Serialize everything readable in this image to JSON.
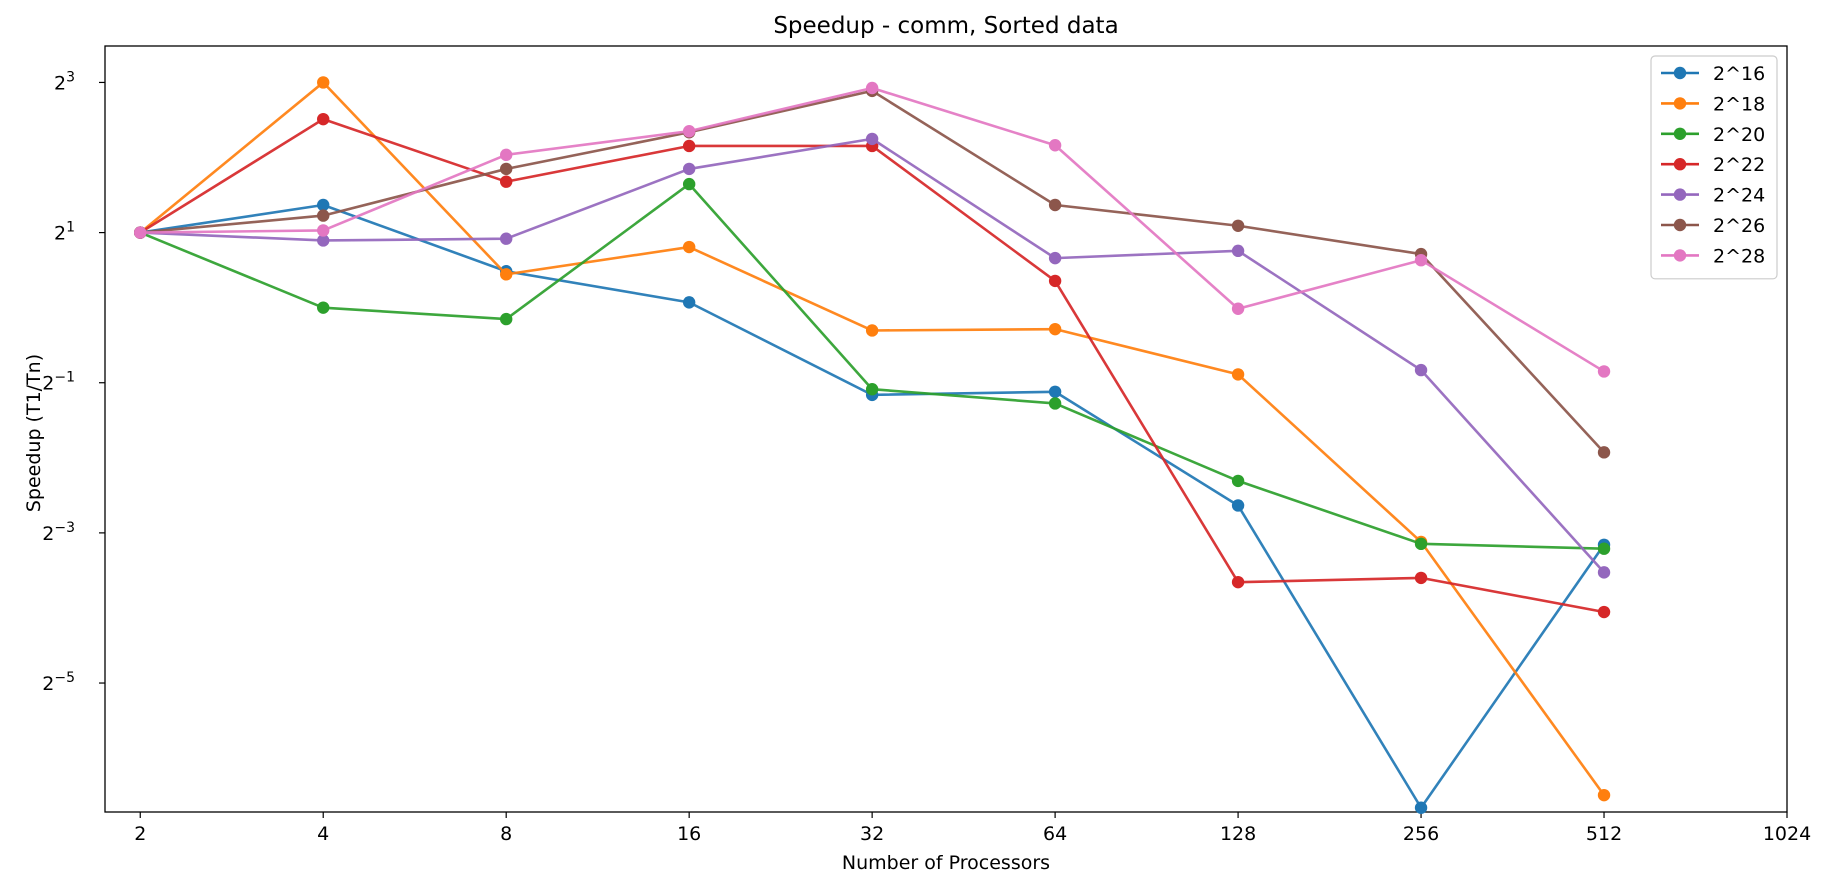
{
  "chart_data": {
    "type": "line",
    "title": "Speedup - comm, Sorted data",
    "xlabel": "Number of Processors",
    "ylabel": "Speedup (T1/Tn)",
    "x_scale": "log2",
    "y_scale": "log2",
    "x": [
      2,
      4,
      8,
      16,
      32,
      64,
      128,
      256,
      512
    ],
    "xticks": [
      2,
      4,
      8,
      16,
      32,
      64,
      128,
      256,
      512,
      1024
    ],
    "xtick_labels": [
      "2",
      "4",
      "8",
      "16",
      "32",
      "64",
      "128",
      "256",
      "512",
      "1024"
    ],
    "yticks": [
      {
        "base": "2",
        "exp": "3"
      },
      {
        "base": "2",
        "exp": "1"
      },
      {
        "base": "2",
        "exp": "−1"
      },
      {
        "base": "2",
        "exp": "−3"
      },
      {
        "base": "2",
        "exp": "−5"
      }
    ],
    "ylim": [
      0.0095,
      11.2
    ],
    "xlim": [
      1.75,
      1024
    ],
    "grid": false,
    "legend_position": "top-right",
    "series": [
      {
        "name": "2^16",
        "color": "#1f77b4",
        "values": [
          2.0,
          2.58,
          1.4,
          1.05,
          0.447,
          0.46,
          0.161,
          0.00988,
          0.112
        ]
      },
      {
        "name": "2^18",
        "color": "#ff7f0e",
        "values": [
          2.0,
          8.0,
          1.36,
          1.75,
          0.81,
          0.82,
          0.54,
          0.115,
          0.0111
        ]
      },
      {
        "name": "2^20",
        "color": "#2ca02c",
        "values": [
          2.0,
          1.0,
          0.9,
          3.13,
          0.471,
          0.413,
          0.202,
          0.113,
          0.108
        ]
      },
      {
        "name": "2^22",
        "color": "#d62728",
        "values": [
          2.0,
          5.7,
          3.2,
          4.45,
          4.45,
          1.28,
          0.0793,
          0.0825,
          0.0602
        ]
      },
      {
        "name": "2^24",
        "color": "#9467bd",
        "values": [
          2.0,
          1.86,
          1.89,
          3.6,
          4.75,
          1.58,
          1.69,
          0.562,
          0.0868
        ]
      },
      {
        "name": "2^26",
        "color": "#8c564b",
        "values": [
          2.0,
          2.34,
          3.6,
          5.05,
          7.4,
          2.58,
          2.13,
          1.64,
          0.263
        ]
      },
      {
        "name": "2^28",
        "color": "#e377c2",
        "values": [
          2.0,
          2.04,
          4.1,
          5.1,
          7.6,
          4.48,
          0.99,
          1.55,
          0.555
        ]
      }
    ]
  }
}
